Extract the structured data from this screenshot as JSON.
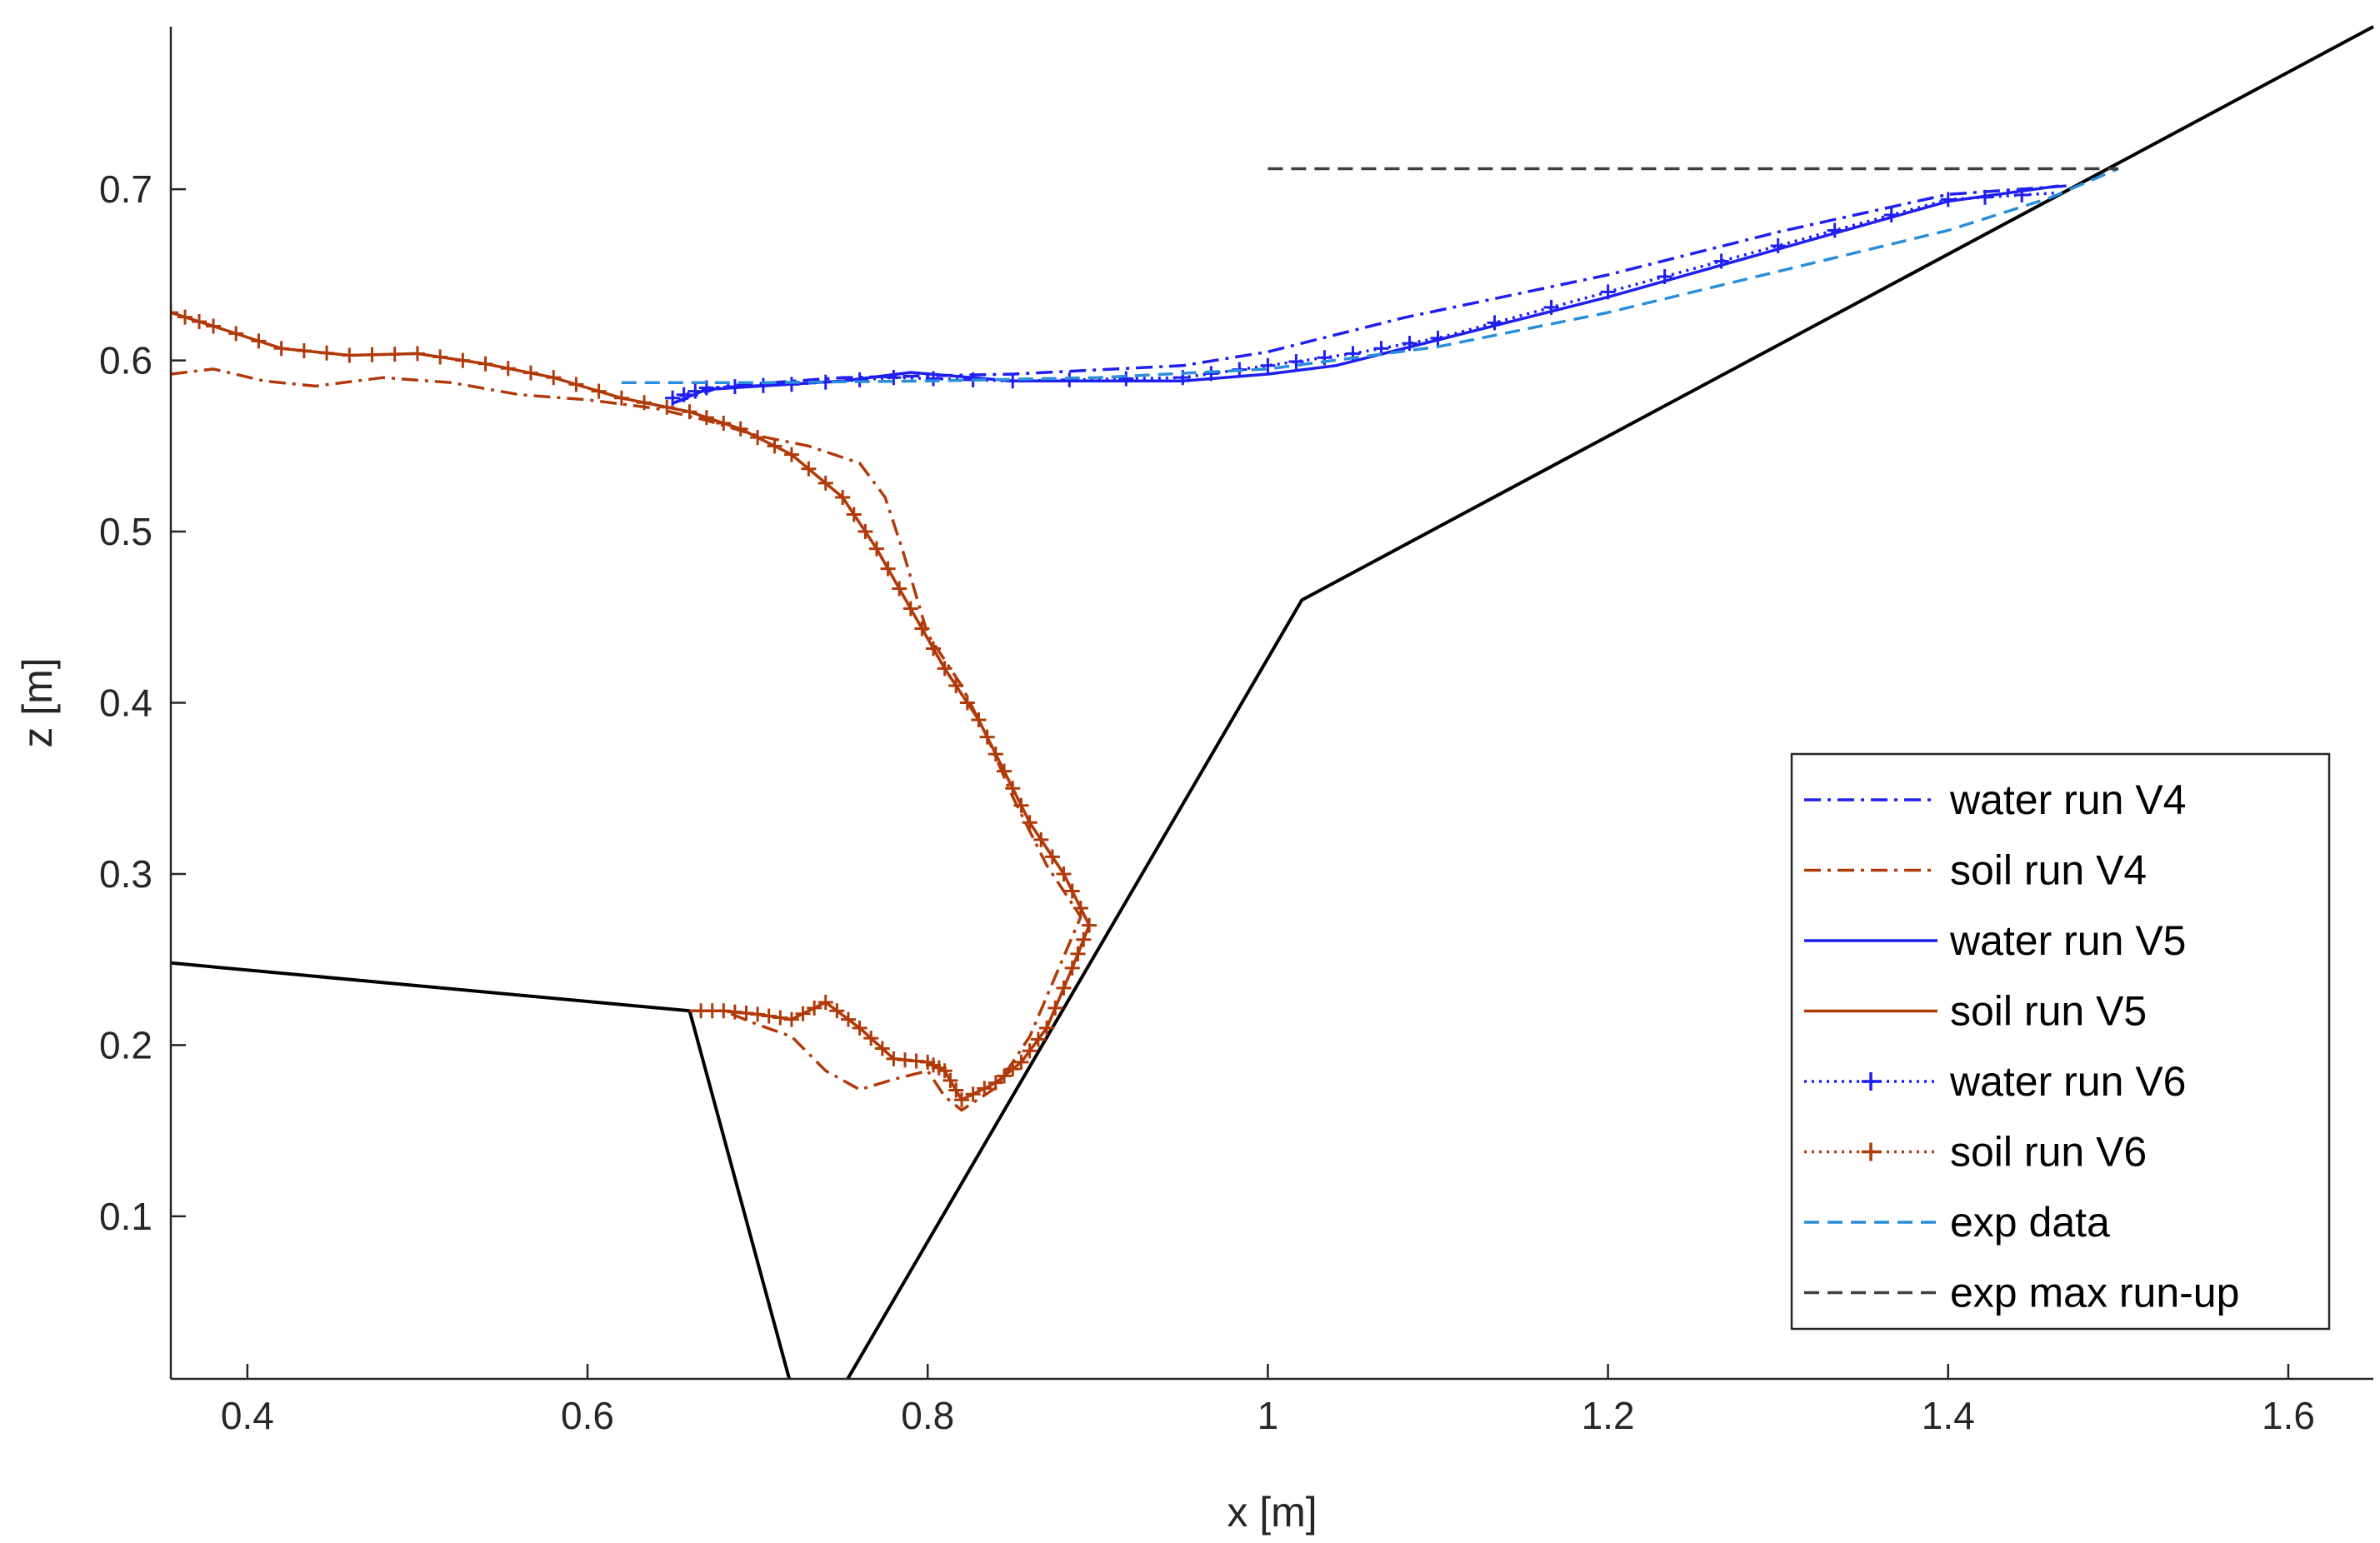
{
  "chart_data": {
    "type": "line",
    "title": "",
    "xlabel": "x [m]",
    "ylabel": "z [m]",
    "xlim": [
      0.355,
      1.65
    ],
    "ylim": [
      0.005,
      0.795
    ],
    "xticks": [
      0.4,
      0.6,
      0.8,
      1,
      1.2,
      1.4,
      1.6
    ],
    "xtick_labels": [
      "0.4",
      "0.6",
      "0.8",
      "1",
      "1.2",
      "1.4",
      "1.6"
    ],
    "yticks": [
      0.1,
      0.2,
      0.3,
      0.4,
      0.5,
      0.6,
      0.7
    ],
    "ytick_labels": [
      "0.1",
      "0.2",
      "0.3",
      "0.4",
      "0.5",
      "0.6",
      "0.7"
    ],
    "grid": false,
    "legend_position": "bottom-right",
    "geometry": {
      "color": "#000000",
      "points": [
        [
          0.355,
          0.248
        ],
        [
          0.66,
          0.22
        ],
        [
          0.72,
          0.0
        ],
        [
          0.75,
          0.0
        ],
        [
          1.02,
          0.46
        ],
        [
          1.65,
          0.795
        ]
      ]
    },
    "series": [
      {
        "name": "water run V4",
        "color": "#1f1ff0",
        "dash": "dashdot",
        "marker": "none",
        "points": [
          [
            0.65,
            0.575
          ],
          [
            0.68,
            0.585
          ],
          [
            0.75,
            0.59
          ],
          [
            0.85,
            0.592
          ],
          [
            0.95,
            0.597
          ],
          [
            1.0,
            0.605
          ],
          [
            1.08,
            0.625
          ],
          [
            1.2,
            0.65
          ],
          [
            1.3,
            0.675
          ],
          [
            1.4,
            0.697
          ],
          [
            1.47,
            0.702
          ]
        ]
      },
      {
        "name": "soil run V4",
        "color": "#b03a0a",
        "dash": "dashdot",
        "marker": "none",
        "points": [
          [
            0.355,
            0.592
          ],
          [
            0.38,
            0.595
          ],
          [
            0.41,
            0.588
          ],
          [
            0.44,
            0.585
          ],
          [
            0.48,
            0.59
          ],
          [
            0.52,
            0.587
          ],
          [
            0.56,
            0.58
          ],
          [
            0.6,
            0.577
          ],
          [
            0.64,
            0.572
          ],
          [
            0.67,
            0.565
          ],
          [
            0.7,
            0.556
          ],
          [
            0.73,
            0.55
          ],
          [
            0.76,
            0.54
          ],
          [
            0.775,
            0.52
          ],
          [
            0.785,
            0.49
          ],
          [
            0.8,
            0.44
          ],
          [
            0.82,
            0.41
          ],
          [
            0.835,
            0.38
          ],
          [
            0.85,
            0.345
          ],
          [
            0.87,
            0.305
          ],
          [
            0.89,
            0.275
          ],
          [
            0.875,
            0.24
          ],
          [
            0.86,
            0.205
          ],
          [
            0.84,
            0.175
          ],
          [
            0.82,
            0.162
          ],
          [
            0.81,
            0.17
          ],
          [
            0.8,
            0.185
          ],
          [
            0.78,
            0.18
          ],
          [
            0.76,
            0.174
          ],
          [
            0.74,
            0.185
          ],
          [
            0.72,
            0.205
          ],
          [
            0.7,
            0.212
          ],
          [
            0.68,
            0.22
          ],
          [
            0.66,
            0.22
          ]
        ]
      },
      {
        "name": "water run V5",
        "color": "#1f1ff0",
        "dash": "solid",
        "marker": "none",
        "points": [
          [
            0.65,
            0.575
          ],
          [
            0.67,
            0.583
          ],
          [
            0.75,
            0.588
          ],
          [
            0.79,
            0.593
          ],
          [
            0.85,
            0.588
          ],
          [
            0.95,
            0.588
          ],
          [
            1.0,
            0.592
          ],
          [
            1.04,
            0.597
          ],
          [
            1.1,
            0.612
          ],
          [
            1.2,
            0.637
          ],
          [
            1.3,
            0.665
          ],
          [
            1.4,
            0.693
          ],
          [
            1.465,
            0.702
          ]
        ]
      },
      {
        "name": "soil run V5",
        "color": "#b03a0a",
        "dash": "solid",
        "marker": "none",
        "points": [
          [
            0.355,
            0.628
          ],
          [
            0.38,
            0.62
          ],
          [
            0.42,
            0.607
          ],
          [
            0.46,
            0.603
          ],
          [
            0.5,
            0.604
          ],
          [
            0.54,
            0.598
          ],
          [
            0.58,
            0.59
          ],
          [
            0.62,
            0.578
          ],
          [
            0.66,
            0.57
          ],
          [
            0.69,
            0.56
          ],
          [
            0.72,
            0.545
          ],
          [
            0.75,
            0.52
          ],
          [
            0.77,
            0.49
          ],
          [
            0.79,
            0.455
          ],
          [
            0.81,
            0.42
          ],
          [
            0.83,
            0.39
          ],
          [
            0.845,
            0.36
          ],
          [
            0.86,
            0.33
          ],
          [
            0.88,
            0.3
          ],
          [
            0.895,
            0.27
          ],
          [
            0.885,
            0.245
          ],
          [
            0.87,
            0.21
          ],
          [
            0.855,
            0.19
          ],
          [
            0.84,
            0.178
          ],
          [
            0.82,
            0.168
          ],
          [
            0.81,
            0.185
          ],
          [
            0.8,
            0.19
          ],
          [
            0.78,
            0.192
          ],
          [
            0.76,
            0.21
          ],
          [
            0.74,
            0.225
          ],
          [
            0.72,
            0.215
          ],
          [
            0.7,
            0.218
          ],
          [
            0.68,
            0.22
          ],
          [
            0.66,
            0.22
          ]
        ]
      },
      {
        "name": "water run V6",
        "color": "#1f1ff0",
        "dash": "dotted",
        "marker": "+",
        "points": [
          [
            0.65,
            0.578
          ],
          [
            0.67,
            0.584
          ],
          [
            0.72,
            0.586
          ],
          [
            0.78,
            0.59
          ],
          [
            0.85,
            0.588
          ],
          [
            0.95,
            0.59
          ],
          [
            1.0,
            0.597
          ],
          [
            1.05,
            0.604
          ],
          [
            1.1,
            0.613
          ],
          [
            1.2,
            0.64
          ],
          [
            1.3,
            0.667
          ],
          [
            1.4,
            0.694
          ],
          [
            1.465,
            0.698
          ]
        ]
      },
      {
        "name": "soil run V6",
        "color": "#b03a0a",
        "dash": "dotted",
        "marker": "+",
        "points": [
          [
            0.355,
            0.628
          ],
          [
            0.38,
            0.62
          ],
          [
            0.42,
            0.607
          ],
          [
            0.46,
            0.603
          ],
          [
            0.5,
            0.604
          ],
          [
            0.54,
            0.598
          ],
          [
            0.58,
            0.59
          ],
          [
            0.62,
            0.578
          ],
          [
            0.66,
            0.57
          ],
          [
            0.69,
            0.56
          ],
          [
            0.72,
            0.545
          ],
          [
            0.75,
            0.52
          ],
          [
            0.77,
            0.49
          ],
          [
            0.79,
            0.455
          ],
          [
            0.81,
            0.42
          ],
          [
            0.83,
            0.39
          ],
          [
            0.845,
            0.36
          ],
          [
            0.86,
            0.33
          ],
          [
            0.88,
            0.3
          ],
          [
            0.895,
            0.27
          ],
          [
            0.885,
            0.245
          ],
          [
            0.87,
            0.21
          ],
          [
            0.855,
            0.19
          ],
          [
            0.84,
            0.178
          ],
          [
            0.82,
            0.168
          ],
          [
            0.81,
            0.185
          ],
          [
            0.8,
            0.19
          ],
          [
            0.78,
            0.192
          ],
          [
            0.76,
            0.21
          ],
          [
            0.74,
            0.225
          ],
          [
            0.72,
            0.215
          ],
          [
            0.7,
            0.218
          ],
          [
            0.68,
            0.22
          ],
          [
            0.66,
            0.22
          ]
        ]
      },
      {
        "name": "exp data",
        "color": "#2a8ed8",
        "dash": "dashed",
        "marker": "none",
        "points": [
          [
            0.62,
            0.587
          ],
          [
            0.7,
            0.587
          ],
          [
            0.8,
            0.588
          ],
          [
            0.9,
            0.59
          ],
          [
            1.0,
            0.595
          ],
          [
            1.1,
            0.608
          ],
          [
            1.2,
            0.628
          ],
          [
            1.3,
            0.652
          ],
          [
            1.4,
            0.676
          ],
          [
            1.46,
            0.695
          ],
          [
            1.5,
            0.712
          ]
        ]
      },
      {
        "name": "exp max run-up",
        "color": "#404040",
        "dash": "dashed",
        "marker": "none",
        "points": [
          [
            1.0,
            0.712
          ],
          [
            1.5,
            0.712
          ]
        ]
      }
    ]
  }
}
